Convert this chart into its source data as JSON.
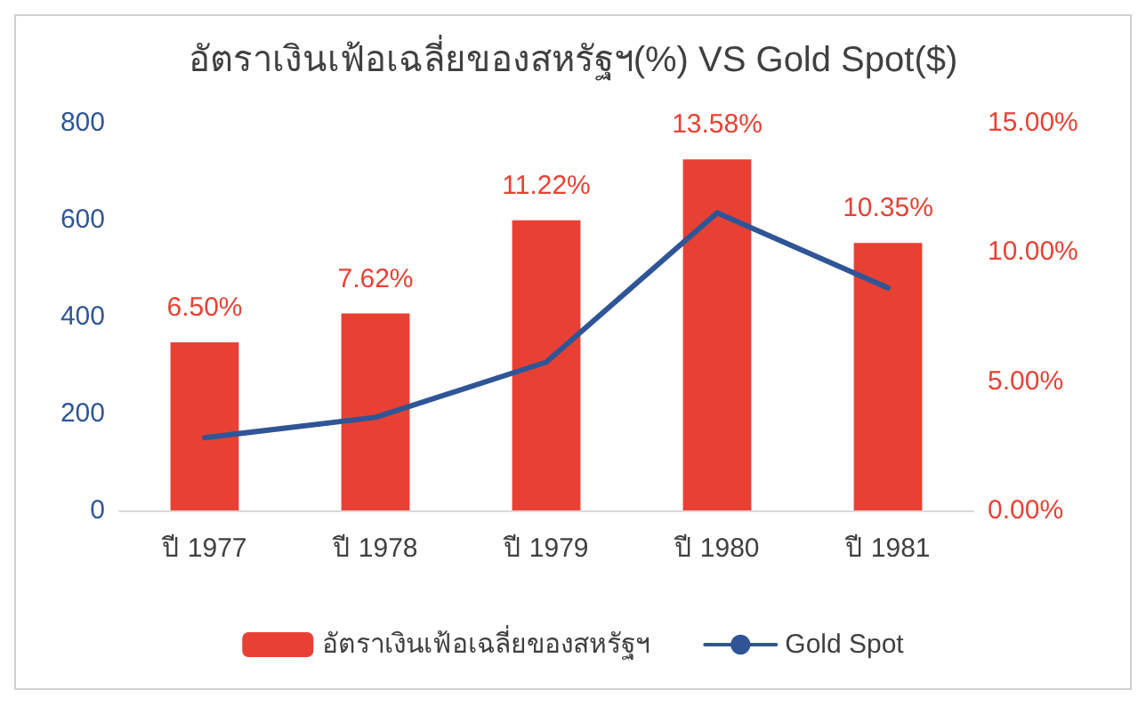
{
  "chart_data": {
    "type": "bar",
    "title": "อัตราเงินเฟ้อเฉลี่ยของสหรัฐฯ(%) VS Gold Spot($)",
    "categories": [
      "ปี 1977",
      "ปี 1978",
      "ปี 1979",
      "ปี 1980",
      "ปี 1981"
    ],
    "series": [
      {
        "name": "อัตราเงินเฟ้อเฉลี่ยของสหรัฐฯ",
        "axis": "y2",
        "color": "#e84133",
        "values": [
          6.5,
          7.62,
          11.22,
          13.58,
          10.35
        ],
        "value_labels": [
          "6.50%",
          "7.62%",
          "11.22%",
          "13.58%",
          "10.35%"
        ]
      },
      {
        "name": "Gold Spot",
        "type": "line",
        "color": "#2f5597",
        "values": [
          150,
          192,
          306,
          614,
          459
        ]
      }
    ],
    "ylim": [
      0,
      800
    ],
    "yticks": [
      0,
      200,
      400,
      600,
      800
    ],
    "y2lim": [
      0,
      15
    ],
    "y2ticks": [
      {
        "value": 0,
        "label": "0.00%"
      },
      {
        "value": 5,
        "label": "5.00%"
      },
      {
        "value": 10,
        "label": "10.00%"
      },
      {
        "value": 15,
        "label": "15.00%"
      }
    ],
    "legend": "bottom",
    "marker": "none",
    "line_style": "solid"
  }
}
